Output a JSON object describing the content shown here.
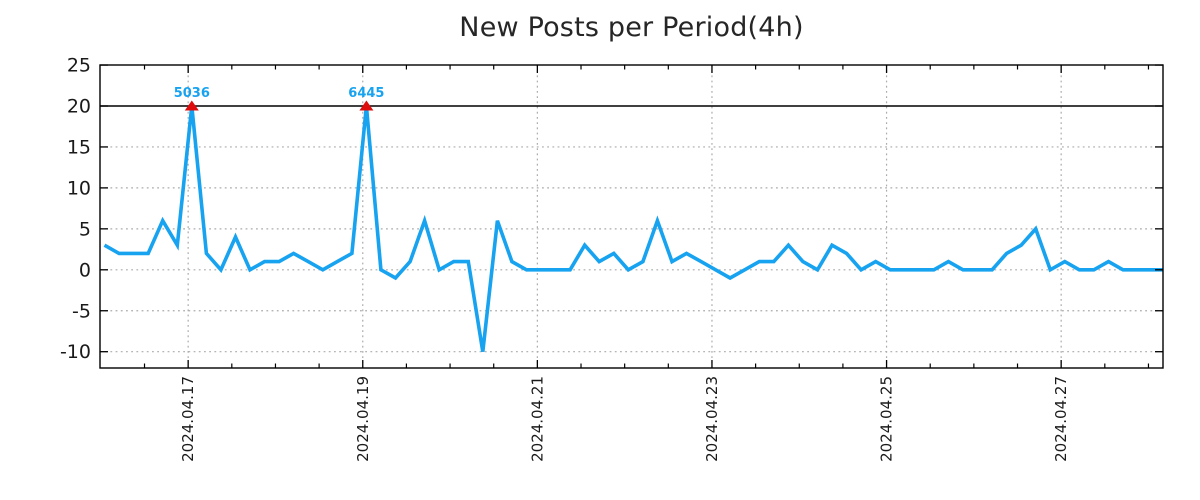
{
  "chart_data": {
    "type": "line",
    "title": "New Posts per Period(4h)",
    "period": "4h",
    "series": [
      {
        "name": "new posts",
        "values": [
          3,
          2,
          2,
          2,
          6,
          3,
          5036,
          2,
          0,
          4,
          0,
          1,
          1,
          2,
          1,
          0,
          1,
          2,
          6445,
          0,
          -1,
          1,
          6,
          0,
          1,
          1,
          -10,
          6,
          1,
          0,
          0,
          0,
          0,
          3,
          1,
          2,
          0,
          1,
          6,
          1,
          2,
          1,
          0,
          -1,
          0,
          1,
          1,
          3,
          1,
          0,
          3,
          2,
          0,
          1,
          0,
          0,
          0,
          0,
          1,
          0,
          0,
          0,
          2,
          3,
          5,
          0,
          1,
          0,
          0,
          1,
          0,
          0,
          0,
          0
        ]
      }
    ],
    "clip_max": 20,
    "threshold_line_y": 20,
    "annotations": [
      {
        "index": 6,
        "label": "5036",
        "value": 5036
      },
      {
        "index": 18,
        "label": "6445",
        "value": 6445
      }
    ],
    "x_major_ticks": [
      {
        "label": "2024.04.17",
        "index": 5.75
      },
      {
        "label": "2024.04.19",
        "index": 17.75
      },
      {
        "label": "2024.04.21",
        "index": 29.75
      },
      {
        "label": "2024.04.23",
        "index": 41.75
      },
      {
        "label": "2024.04.25",
        "index": 53.75
      },
      {
        "label": "2024.04.27",
        "index": 65.75
      }
    ],
    "x_minor_tick_step": 3,
    "x_minor_tick_start_index": 2.75,
    "y_ticks": [
      25,
      20,
      15,
      10,
      5,
      0,
      -5,
      -10
    ],
    "ylim": [
      -12,
      25
    ],
    "grid": "dotted",
    "legend": "none",
    "colors": {
      "line": "#17a3f0",
      "marker": "#dd0d0d",
      "annotation_text": "#17a3f0",
      "grid": "#ababab",
      "axis": "#000000",
      "tick_text": "#1a1a1a",
      "title_text": "#262626",
      "threshold_line": "#000000",
      "background": "#ffffff"
    }
  }
}
